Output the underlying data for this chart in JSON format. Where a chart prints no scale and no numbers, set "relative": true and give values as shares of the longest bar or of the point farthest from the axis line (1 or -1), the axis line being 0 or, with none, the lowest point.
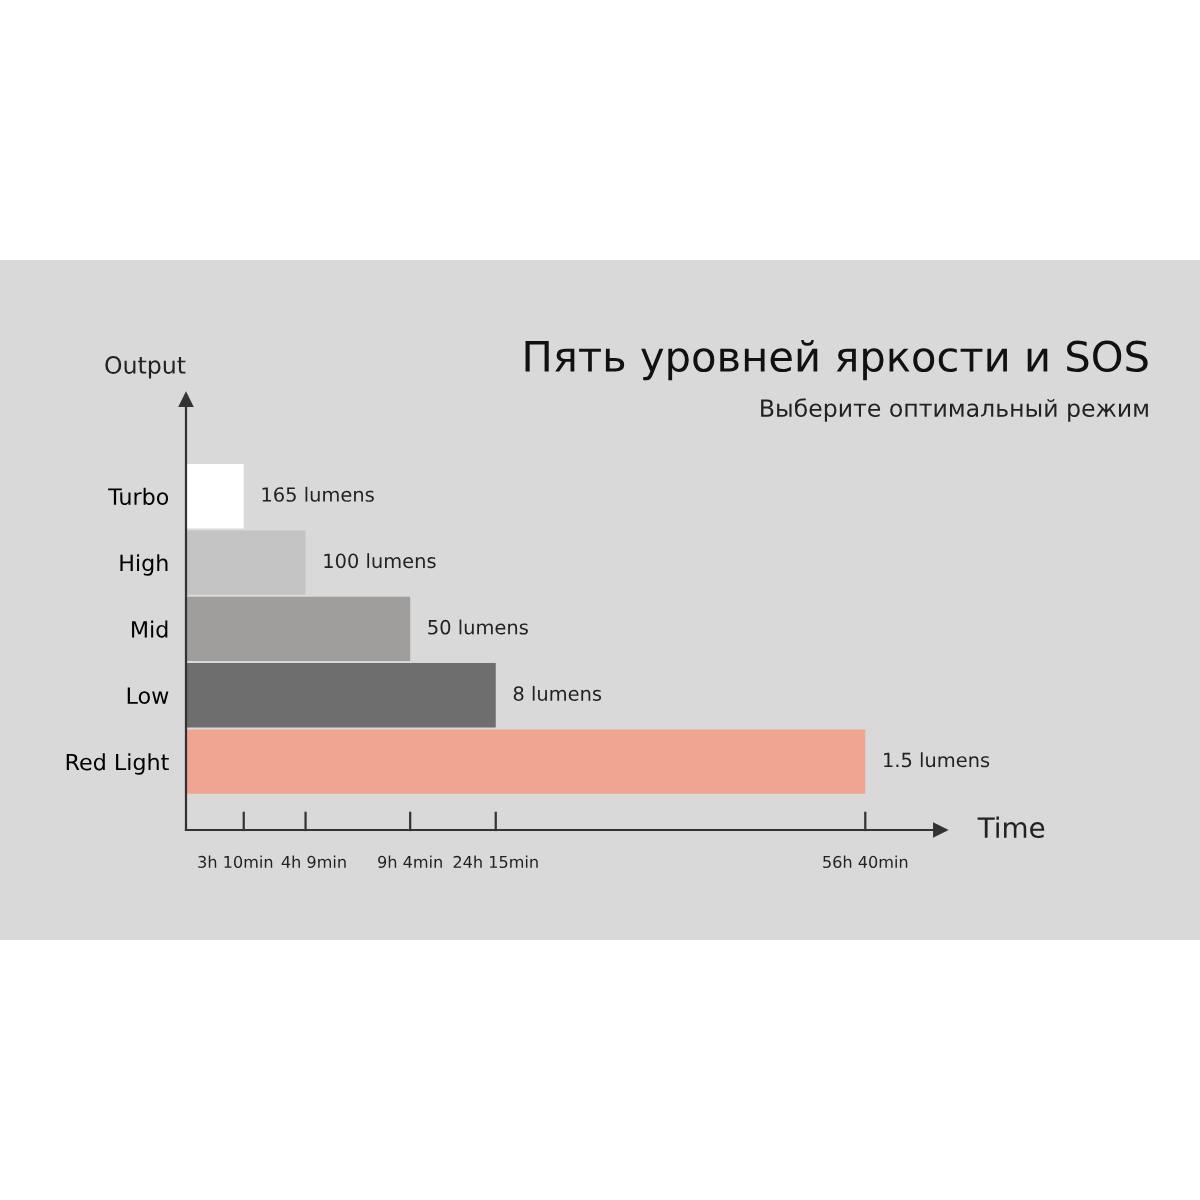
{
  "chart_data": {
    "type": "bar",
    "orientation": "horizontal",
    "relative": true,
    "title": "Пять уровней яркости и SOS",
    "subtitle": "Выберите оптимальный режим",
    "xlabel": "Time",
    "ylabel": "Output",
    "categories": [
      "Turbo",
      "High",
      "Mid",
      "Low",
      "Red Light"
    ],
    "values": [
      0.085,
      0.176,
      0.33,
      0.456,
      1
    ],
    "colors": [
      "#ffffff",
      "#c4c4c4",
      "#a09e9c",
      "#6e6e6e",
      "#f0a592"
    ],
    "annotations": [
      {
        "text": "165 lumens",
        "x": 0.085,
        "y": "Turbo"
      },
      {
        "text": "100 lumens",
        "x": 0.176,
        "y": "High"
      },
      {
        "text": "50 lumens",
        "x": 0.33,
        "y": "Mid"
      },
      {
        "text": "8 lumens",
        "x": 0.456,
        "y": "Low"
      },
      {
        "text": "1.5 lumens",
        "x": 1,
        "y": "Red Light"
      },
      "3h 10min",
      "4h 9min",
      "9h 4min",
      "24h 15min",
      "56h 40min"
    ],
    "grid": false,
    "legend": false
  }
}
